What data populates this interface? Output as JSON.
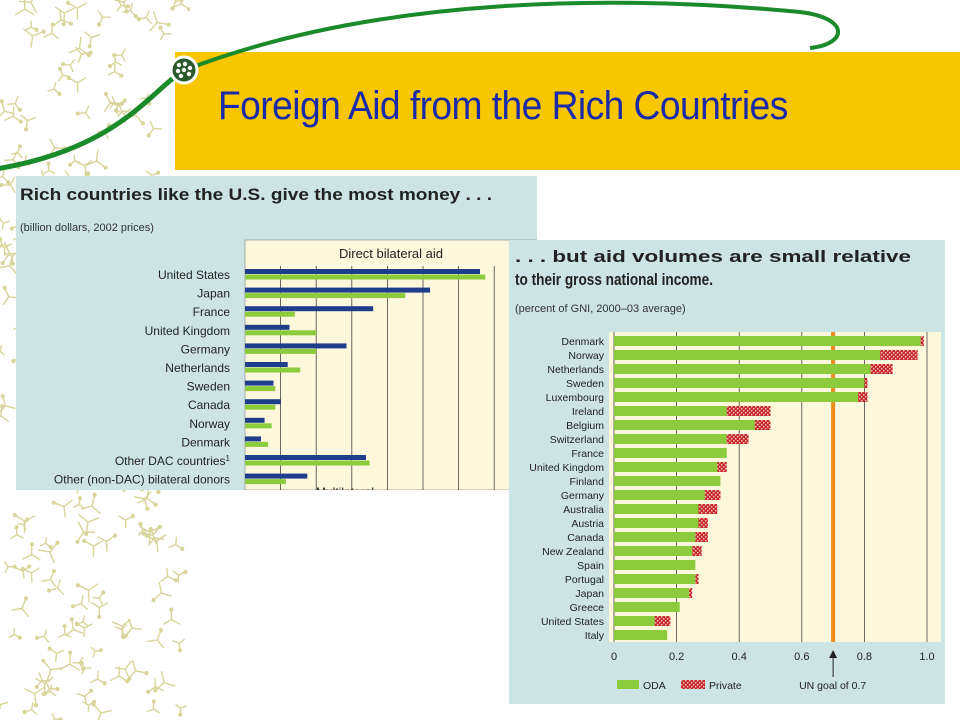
{
  "slide": {
    "title": "Foreign Aid from the Rich Countries"
  },
  "colors": {
    "title_band": "#F7C600",
    "title_text": "#1a2aa8",
    "panel_bg": "#cde4e4",
    "plot_bg": "#fdf7dc",
    "oda_green": "#8ccc3c",
    "bilateral_blue": "#1e3e8c",
    "private_red": "#c82828",
    "goal_orange": "#f08c1e",
    "deco_pattern": "#d8d49a"
  },
  "chart_data": [
    {
      "type": "bar",
      "orientation": "horizontal",
      "title": "Rich countries like the U.S. give the most money . . .",
      "subtitle": "(billion dollars, 2002 prices)",
      "inset_label": "Direct bilateral aid",
      "bottom_label": "Multilateral",
      "categories": [
        "United States",
        "Japan",
        "France",
        "United Kingdom",
        "Germany",
        "Netherlands",
        "Sweden",
        "Canada",
        "Norway",
        "Denmark",
        "Other DAC countries",
        "Other (non-DAC) bilateral donors"
      ],
      "category_footnote": "1",
      "series": [
        {
          "values": [
            13.2,
            10.4,
            7.2,
            2.5,
            5.7,
            2.4,
            1.6,
            2.0,
            1.1,
            0.9,
            6.8,
            3.5
          ]
        },
        {
          "values": [
            13.5,
            9.0,
            2.8,
            4.0,
            4.0,
            3.1,
            1.7,
            1.7,
            1.5,
            1.3,
            7.0,
            2.3
          ]
        }
      ],
      "xlim": [
        0,
        15.5
      ],
      "grid": true
    },
    {
      "type": "bar",
      "orientation": "horizontal",
      "stacked": true,
      "title": ". . . but aid volumes are small relative to their gross national income.",
      "subtitle": "(percent of GNI, 2000–03 average)",
      "categories": [
        "Denmark",
        "Norway",
        "Netherlands",
        "Sweden",
        "Luxembourg",
        "Ireland",
        "Belgium",
        "Switzerland",
        "France",
        "United Kingdom",
        "Finland",
        "Germany",
        "Australia",
        "Austria",
        "Canada",
        "New Zealand",
        "Spain",
        "Portugal",
        "Japan",
        "Greece",
        "United States",
        "Italy"
      ],
      "series": [
        {
          "name": "ODA",
          "values": [
            0.98,
            0.85,
            0.82,
            0.8,
            0.78,
            0.36,
            0.45,
            0.36,
            0.36,
            0.33,
            0.34,
            0.29,
            0.27,
            0.27,
            0.26,
            0.25,
            0.26,
            0.26,
            0.24,
            0.21,
            0.13,
            0.17
          ]
        },
        {
          "name": "Private",
          "values": [
            0.01,
            0.12,
            0.07,
            0.01,
            0.03,
            0.14,
            0.05,
            0.07,
            0.0,
            0.03,
            0.0,
            0.05,
            0.06,
            0.03,
            0.04,
            0.03,
            0.0,
            0.01,
            0.01,
            0.0,
            0.05,
            0.0
          ]
        }
      ],
      "xlim": [
        0,
        1.0
      ],
      "xticks": [
        "0",
        "0.2",
        "0.4",
        "0.6",
        "0.8",
        "1.0"
      ],
      "reference_line": {
        "value": 0.7,
        "label": "UN goal of 0.7"
      },
      "legend_position": "bottom-left",
      "grid": true
    }
  ]
}
